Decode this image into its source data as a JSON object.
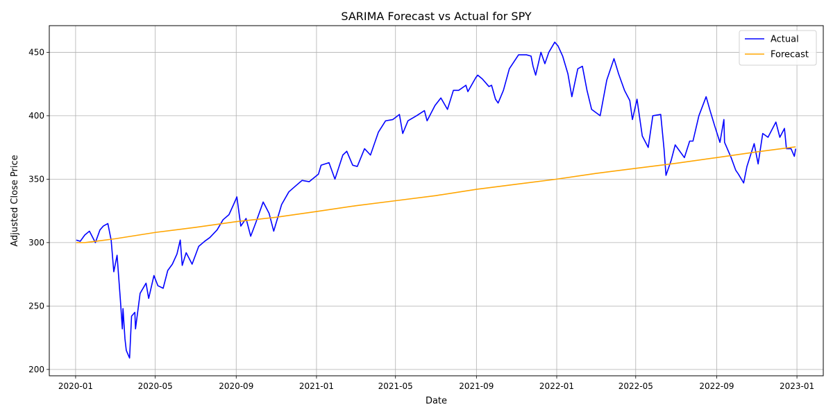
{
  "chart_data": {
    "type": "line",
    "title": "SARIMA Forecast vs Actual for SPY",
    "xlabel": "Date",
    "ylabel": "Adjusted Close Price",
    "xlim": [
      "2019-11-22",
      "2023-02-10"
    ],
    "ylim": [
      195,
      471
    ],
    "x_ticks": [
      "2020-01",
      "2020-05",
      "2020-09",
      "2021-01",
      "2021-05",
      "2021-09",
      "2022-01",
      "2022-05",
      "2022-09",
      "2023-01"
    ],
    "y_ticks": [
      200,
      250,
      300,
      350,
      400,
      450
    ],
    "grid": true,
    "legend_position": "top-right",
    "series": [
      {
        "name": "Actual",
        "color": "#0000ff",
        "points": [
          [
            "2020-01-02",
            302
          ],
          [
            "2020-01-08",
            301
          ],
          [
            "2020-01-15",
            306
          ],
          [
            "2020-01-22",
            309
          ],
          [
            "2020-01-31",
            300
          ],
          [
            "2020-02-07",
            310
          ],
          [
            "2020-02-12",
            313
          ],
          [
            "2020-02-19",
            315
          ],
          [
            "2020-02-24",
            302
          ],
          [
            "2020-02-28",
            277
          ],
          [
            "2020-03-04",
            290
          ],
          [
            "2020-03-09",
            255
          ],
          [
            "2020-03-12",
            232
          ],
          [
            "2020-03-13",
            248
          ],
          [
            "2020-03-16",
            224
          ],
          [
            "2020-03-18",
            215
          ],
          [
            "2020-03-23",
            209
          ],
          [
            "2020-03-26",
            242
          ],
          [
            "2020-03-31",
            245
          ],
          [
            "2020-04-01",
            232
          ],
          [
            "2020-04-08",
            260
          ],
          [
            "2020-04-17",
            268
          ],
          [
            "2020-04-21",
            256
          ],
          [
            "2020-04-29",
            274
          ],
          [
            "2020-05-05",
            266
          ],
          [
            "2020-05-13",
            264
          ],
          [
            "2020-05-20",
            278
          ],
          [
            "2020-05-27",
            283
          ],
          [
            "2020-06-03",
            291
          ],
          [
            "2020-06-08",
            302
          ],
          [
            "2020-06-11",
            282
          ],
          [
            "2020-06-17",
            292
          ],
          [
            "2020-06-26",
            283
          ],
          [
            "2020-07-06",
            297
          ],
          [
            "2020-07-15",
            301
          ],
          [
            "2020-07-23",
            304
          ],
          [
            "2020-08-03",
            310
          ],
          [
            "2020-08-12",
            318
          ],
          [
            "2020-08-21",
            322
          ],
          [
            "2020-08-28",
            330
          ],
          [
            "2020-09-02",
            336
          ],
          [
            "2020-09-08",
            313
          ],
          [
            "2020-09-16",
            319
          ],
          [
            "2020-09-23",
            305
          ],
          [
            "2020-10-01",
            316
          ],
          [
            "2020-10-12",
            332
          ],
          [
            "2020-10-21",
            323
          ],
          [
            "2020-10-28",
            309
          ],
          [
            "2020-11-09",
            330
          ],
          [
            "2020-11-20",
            340
          ],
          [
            "2020-12-01",
            345
          ],
          [
            "2020-12-10",
            349
          ],
          [
            "2020-12-21",
            348
          ],
          [
            "2021-01-04",
            354
          ],
          [
            "2021-01-08",
            361
          ],
          [
            "2021-01-20",
            363
          ],
          [
            "2021-01-29",
            350
          ],
          [
            "2021-02-10",
            369
          ],
          [
            "2021-02-16",
            372
          ],
          [
            "2021-02-25",
            361
          ],
          [
            "2021-03-04",
            360
          ],
          [
            "2021-03-15",
            374
          ],
          [
            "2021-03-24",
            369
          ],
          [
            "2021-04-05",
            387
          ],
          [
            "2021-04-16",
            396
          ],
          [
            "2021-04-27",
            397
          ],
          [
            "2021-05-07",
            401
          ],
          [
            "2021-05-12",
            386
          ],
          [
            "2021-05-20",
            396
          ],
          [
            "2021-06-02",
            400
          ],
          [
            "2021-06-14",
            404
          ],
          [
            "2021-06-18",
            396
          ],
          [
            "2021-06-30",
            408
          ],
          [
            "2021-07-09",
            414
          ],
          [
            "2021-07-19",
            405
          ],
          [
            "2021-07-28",
            420
          ],
          [
            "2021-08-05",
            420
          ],
          [
            "2021-08-16",
            424
          ],
          [
            "2021-08-19",
            419
          ],
          [
            "2021-08-31",
            430
          ],
          [
            "2021-09-03",
            432
          ],
          [
            "2021-09-10",
            429
          ],
          [
            "2021-09-20",
            423
          ],
          [
            "2021-09-24",
            424
          ],
          [
            "2021-09-30",
            413
          ],
          [
            "2021-10-04",
            410
          ],
          [
            "2021-10-12",
            420
          ],
          [
            "2021-10-21",
            437
          ],
          [
            "2021-11-04",
            448
          ],
          [
            "2021-11-16",
            448
          ],
          [
            "2021-11-23",
            447
          ],
          [
            "2021-11-26",
            439
          ],
          [
            "2021-11-30",
            432
          ],
          [
            "2021-12-08",
            450
          ],
          [
            "2021-12-14",
            441
          ],
          [
            "2021-12-20",
            450
          ],
          [
            "2021-12-29",
            458
          ],
          [
            "2022-01-03",
            455
          ],
          [
            "2022-01-10",
            447
          ],
          [
            "2022-01-18",
            433
          ],
          [
            "2022-01-24",
            415
          ],
          [
            "2022-02-02",
            437
          ],
          [
            "2022-02-09",
            439
          ],
          [
            "2022-02-16",
            420
          ],
          [
            "2022-02-23",
            405
          ],
          [
            "2022-03-08",
            400
          ],
          [
            "2022-03-18",
            428
          ],
          [
            "2022-03-29",
            445
          ],
          [
            "2022-04-05",
            433
          ],
          [
            "2022-04-14",
            420
          ],
          [
            "2022-04-22",
            412
          ],
          [
            "2022-04-26",
            397
          ],
          [
            "2022-05-03",
            413
          ],
          [
            "2022-05-11",
            384
          ],
          [
            "2022-05-20",
            375
          ],
          [
            "2022-05-27",
            400
          ],
          [
            "2022-06-08",
            401
          ],
          [
            "2022-06-13",
            374
          ],
          [
            "2022-06-16",
            353
          ],
          [
            "2022-06-24",
            365
          ],
          [
            "2022-06-30",
            377
          ],
          [
            "2022-07-14",
            367
          ],
          [
            "2022-07-22",
            380
          ],
          [
            "2022-07-27",
            380
          ],
          [
            "2022-08-05",
            400
          ],
          [
            "2022-08-16",
            415
          ],
          [
            "2022-08-22",
            404
          ],
          [
            "2022-08-29",
            392
          ],
          [
            "2022-09-06",
            379
          ],
          [
            "2022-09-12",
            397
          ],
          [
            "2022-09-13",
            379
          ],
          [
            "2022-09-23",
            367
          ],
          [
            "2022-09-30",
            357
          ],
          [
            "2022-10-04",
            354
          ],
          [
            "2022-10-12",
            347
          ],
          [
            "2022-10-17",
            360
          ],
          [
            "2022-10-28",
            378
          ],
          [
            "2022-11-03",
            362
          ],
          [
            "2022-11-10",
            386
          ],
          [
            "2022-11-18",
            383
          ],
          [
            "2022-11-30",
            395
          ],
          [
            "2022-12-06",
            383
          ],
          [
            "2022-12-13",
            390
          ],
          [
            "2022-12-16",
            374
          ],
          [
            "2022-12-23",
            374
          ],
          [
            "2022-12-28",
            368
          ],
          [
            "2022-12-30",
            374
          ]
        ]
      },
      {
        "name": "Forecast",
        "color": "#ffa500",
        "points": [
          [
            "2020-01-02",
            300
          ],
          [
            "2020-01-15",
            300
          ],
          [
            "2020-01-31",
            301
          ],
          [
            "2020-03-01",
            303
          ],
          [
            "2020-05-01",
            308
          ],
          [
            "2020-07-01",
            312
          ],
          [
            "2020-09-01",
            316.5
          ],
          [
            "2020-11-01",
            320
          ],
          [
            "2021-01-01",
            324.5
          ],
          [
            "2021-03-01",
            329
          ],
          [
            "2021-05-01",
            333
          ],
          [
            "2021-07-01",
            337
          ],
          [
            "2021-09-01",
            342
          ],
          [
            "2021-11-01",
            346
          ],
          [
            "2022-01-01",
            350
          ],
          [
            "2022-03-01",
            354.5
          ],
          [
            "2022-05-01",
            358.5
          ],
          [
            "2022-07-01",
            362.5
          ],
          [
            "2022-09-01",
            367
          ],
          [
            "2022-11-01",
            371.5
          ],
          [
            "2022-12-30",
            375.5
          ]
        ]
      }
    ]
  }
}
